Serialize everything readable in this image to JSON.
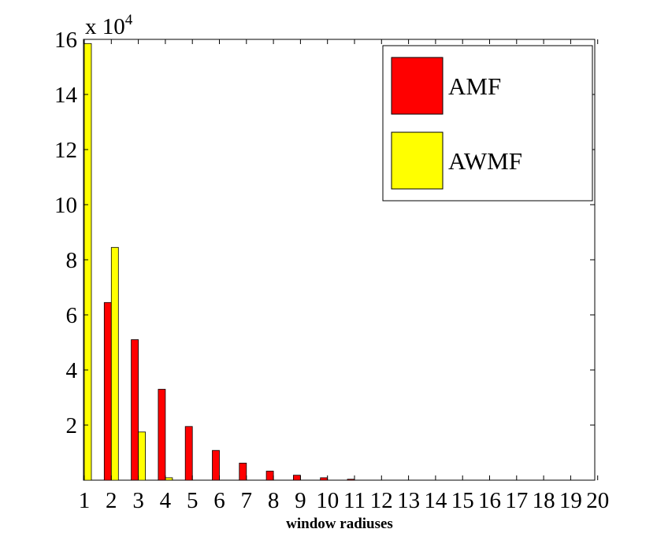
{
  "chart_data": {
    "type": "bar",
    "title": "",
    "xlabel": "window radiuses",
    "ylabel": "",
    "y_multiplier_base": "x 10",
    "y_multiplier_exponent": "4",
    "categories": [
      "1",
      "2",
      "3",
      "4",
      "5",
      "6",
      "7",
      "8",
      "9",
      "10",
      "11",
      "12",
      "13",
      "14",
      "15",
      "16",
      "17",
      "18",
      "19",
      "20"
    ],
    "ylim": [
      0,
      160000
    ],
    "yticks": [
      20000,
      40000,
      60000,
      80000,
      100000,
      120000,
      140000,
      160000
    ],
    "ytick_labels": [
      "2",
      "4",
      "6",
      "8",
      "10",
      "12",
      "14",
      "16"
    ],
    "grid": false,
    "legend_position": "top-right",
    "series": [
      {
        "name": "AMF",
        "color": "#ff0000",
        "values": [
          0,
          64500,
          51000,
          33000,
          19500,
          10800,
          6200,
          3300,
          1800,
          900,
          350,
          0,
          0,
          0,
          0,
          0,
          0,
          0,
          0,
          0
        ]
      },
      {
        "name": "AWMF",
        "color": "#ffff00",
        "values": [
          158500,
          84500,
          17500,
          900,
          0,
          0,
          0,
          0,
          0,
          0,
          0,
          0,
          0,
          0,
          0,
          0,
          0,
          0,
          0,
          0
        ]
      }
    ]
  }
}
